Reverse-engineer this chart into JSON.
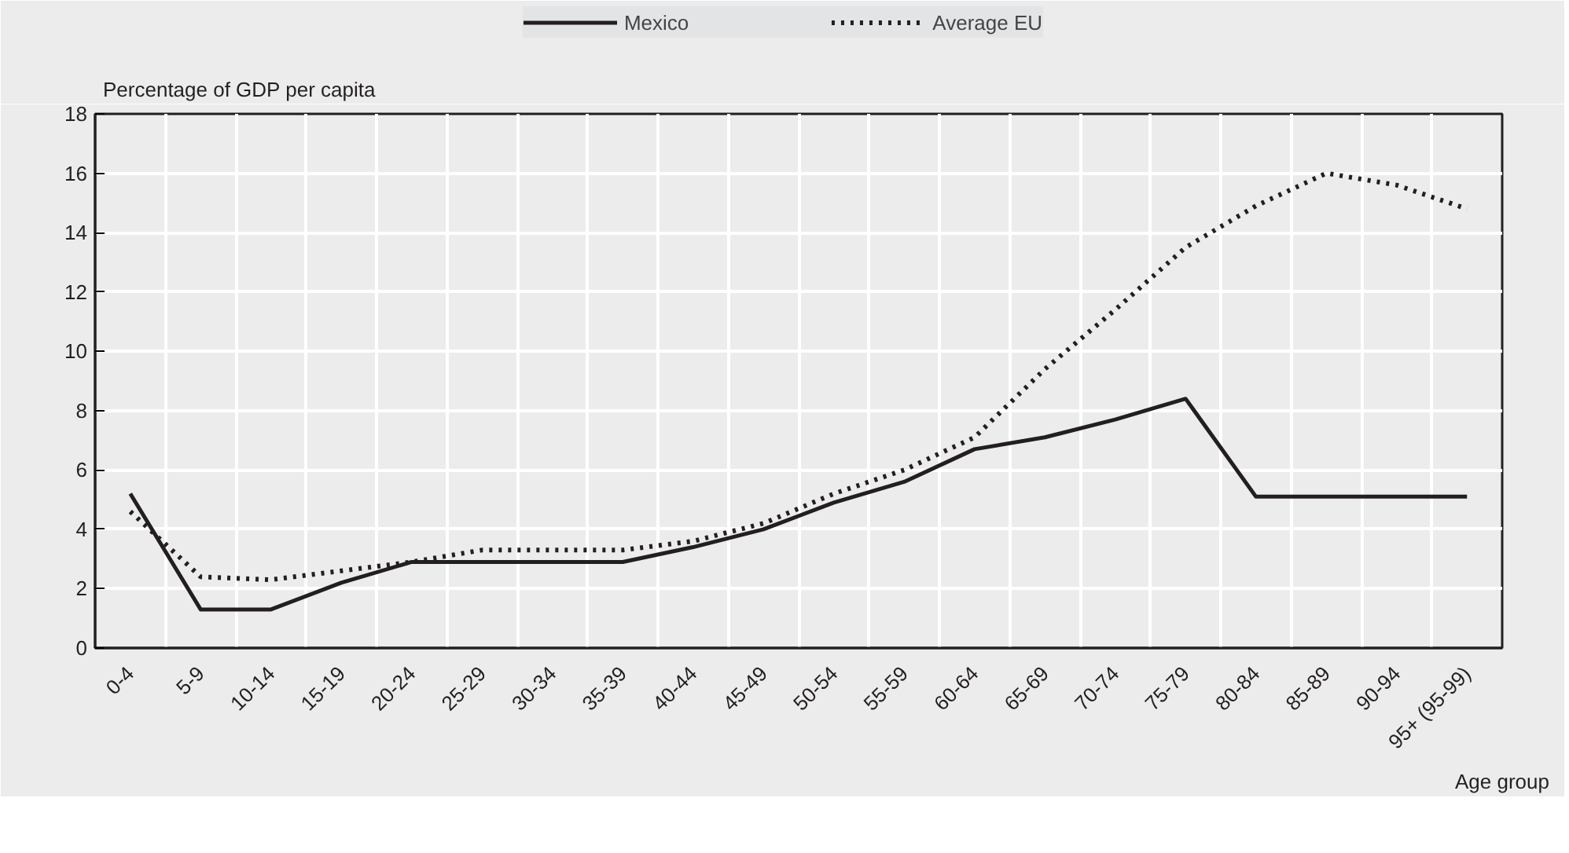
{
  "chart_data": {
    "type": "line",
    "xlabel": "Age group",
    "ylabel": "Percentage of GDP per capita",
    "categories": [
      "0-4",
      "5-9",
      "10-14",
      "15-19",
      "20-24",
      "25-29",
      "30-34",
      "35-39",
      "40-44",
      "45-49",
      "50-54",
      "55-59",
      "60-64",
      "65-69",
      "70-74",
      "75-79",
      "80-84",
      "85-89",
      "90-94",
      "95+ (95-99)"
    ],
    "series": [
      {
        "name": "Mexico",
        "color": "#231f20",
        "line_style": "solid",
        "values": [
          5.2,
          1.3,
          1.3,
          2.2,
          2.9,
          2.9,
          2.9,
          2.9,
          3.4,
          4.0,
          4.9,
          5.6,
          6.7,
          7.1,
          7.7,
          8.4,
          5.1,
          5.1,
          5.1,
          5.1
        ]
      },
      {
        "name": "Average EU",
        "color": "#231f20",
        "line_style": "dotted",
        "values": [
          4.6,
          2.4,
          2.3,
          2.6,
          2.9,
          3.3,
          3.3,
          3.3,
          3.6,
          4.2,
          5.2,
          6.0,
          7.1,
          9.4,
          11.4,
          13.5,
          14.9,
          16.0,
          15.6,
          14.8
        ]
      }
    ],
    "ylim": [
      0,
      18
    ],
    "yticks": [
      0,
      2,
      4,
      6,
      8,
      10,
      12,
      14,
      16,
      18
    ],
    "grid": true,
    "legend": "top",
    "marker": "none"
  }
}
